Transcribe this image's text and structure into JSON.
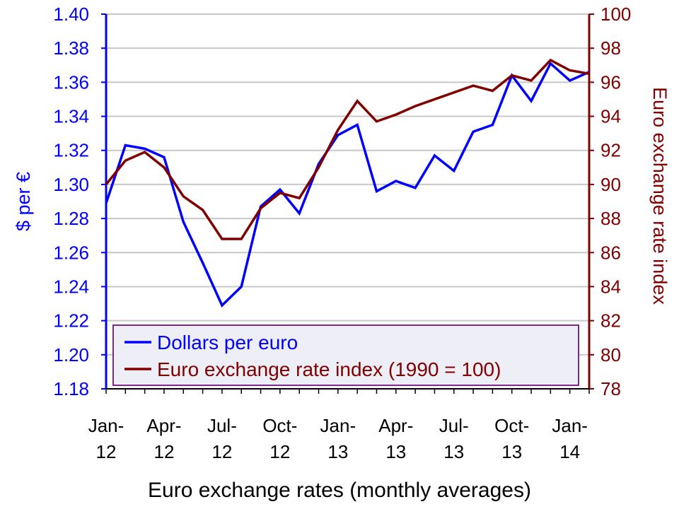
{
  "chart_data": {
    "type": "line",
    "title": "Euro exchange rates (monthly averages)",
    "xlabel": "Euro exchange rates (monthly averages)",
    "x": [
      "Jan-12",
      "Feb-12",
      "Mar-12",
      "Apr-12",
      "May-12",
      "Jun-12",
      "Jul-12",
      "Aug-12",
      "Sep-12",
      "Oct-12",
      "Nov-12",
      "Dec-12",
      "Jan-13",
      "Feb-13",
      "Mar-13",
      "Apr-13",
      "May-13",
      "Jun-13",
      "Jul-13",
      "Aug-13",
      "Sep-13",
      "Oct-13",
      "Nov-13",
      "Dec-13",
      "Jan-14",
      "Feb-14"
    ],
    "x_tick_labels": [
      [
        "Jan-",
        "12"
      ],
      [
        "Apr-",
        "12"
      ],
      [
        "Jul-",
        "12"
      ],
      [
        "Oct-",
        "12"
      ],
      [
        "Jan-",
        "13"
      ],
      [
        "Apr-",
        "13"
      ],
      [
        "Jul-",
        "13"
      ],
      [
        "Oct-",
        "13"
      ],
      [
        "Jan-",
        "14"
      ]
    ],
    "y_left": {
      "label": "$ per €",
      "lim": [
        1.18,
        1.4
      ],
      "ticks": [
        "1.18",
        "1.20",
        "1.22",
        "1.24",
        "1.26",
        "1.28",
        "1.30",
        "1.32",
        "1.34",
        "1.36",
        "1.38",
        "1.40"
      ],
      "color": "#0000FF"
    },
    "y_right": {
      "label": "Euro exchange rate index",
      "lim": [
        78,
        100
      ],
      "ticks": [
        "78",
        "80",
        "82",
        "84",
        "86",
        "88",
        "90",
        "92",
        "94",
        "96",
        "98",
        "100"
      ],
      "color": "#800000"
    },
    "grid": true,
    "legend_position": "bottom-center",
    "series": [
      {
        "name": "Dollars per euro",
        "axis": "left",
        "color": "#0000FF",
        "values": [
          1.289,
          1.323,
          1.321,
          1.316,
          1.278,
          1.254,
          1.229,
          1.24,
          1.287,
          1.297,
          1.283,
          1.312,
          1.329,
          1.335,
          1.296,
          1.302,
          1.298,
          1.317,
          1.308,
          1.331,
          1.335,
          1.364,
          1.349,
          1.371,
          1.361,
          1.366
        ]
      },
      {
        "name": "Euro exchange rate index (1990 = 100)",
        "axis": "right",
        "color": "#800000",
        "values": [
          90.0,
          91.4,
          91.9,
          91.0,
          89.3,
          88.5,
          86.8,
          86.8,
          88.6,
          89.5,
          89.2,
          91.0,
          93.2,
          94.9,
          93.7,
          94.1,
          94.6,
          95.0,
          95.4,
          95.8,
          95.5,
          96.4,
          96.1,
          97.3,
          96.7,
          96.5
        ]
      }
    ]
  }
}
